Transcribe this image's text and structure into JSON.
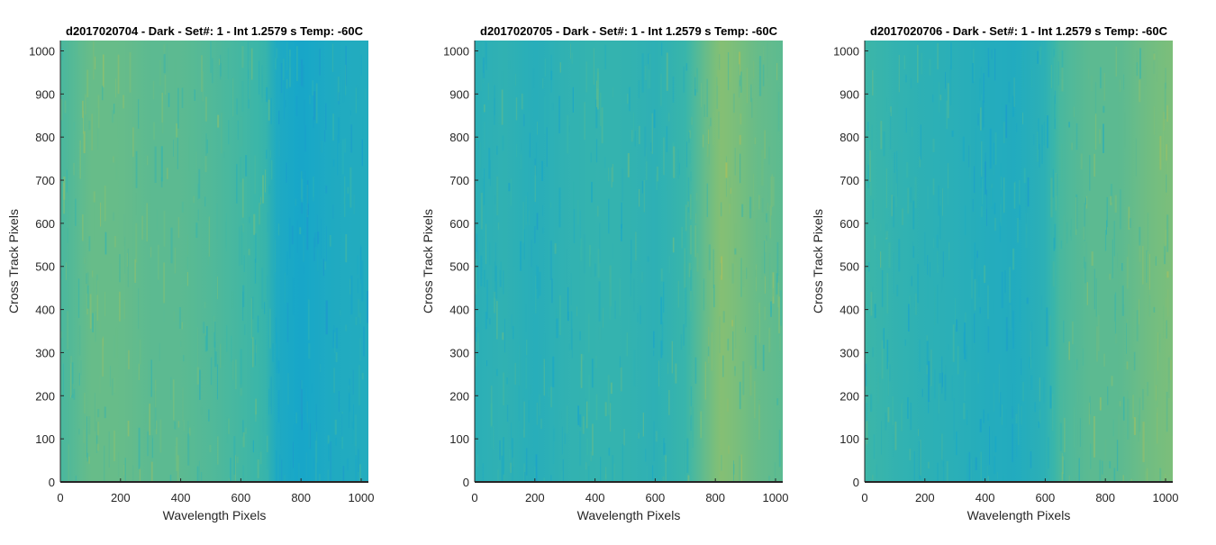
{
  "figure": {
    "background": "#ffffff"
  },
  "chart_data": [
    {
      "type": "heatmap",
      "title": "d2017020704 - Dark - Set#: 1 - Int 1.2579 s Temp: -60C",
      "xlabel": "Wavelength Pixels",
      "ylabel": "Cross Track Pixels",
      "xlim": [
        0,
        1024
      ],
      "ylim": [
        0,
        1024
      ],
      "xticks": [
        0,
        200,
        400,
        600,
        800,
        1000
      ],
      "yticks": [
        0,
        100,
        200,
        300,
        400,
        500,
        600,
        700,
        800,
        900,
        1000
      ],
      "colormap": [
        "#1f8fd0",
        "#18a7c8",
        "#3cb6a8",
        "#7fbf78",
        "#b6bf55"
      ],
      "column_profile": {
        "x": [
          0,
          100,
          200,
          300,
          400,
          500,
          600,
          680,
          720,
          800,
          900,
          1024
        ],
        "level": [
          0.55,
          0.66,
          0.66,
          0.62,
          0.62,
          0.58,
          0.53,
          0.48,
          0.3,
          0.24,
          0.3,
          0.33
        ]
      }
    },
    {
      "type": "heatmap",
      "title": "d2017020705 - Dark - Set#: 1 - Int 1.2579 s Temp: -60C",
      "xlabel": "Wavelength Pixels",
      "ylabel": "Cross Track Pixels",
      "xlim": [
        0,
        1024
      ],
      "ylim": [
        0,
        1024
      ],
      "xticks": [
        0,
        200,
        400,
        600,
        800,
        1000
      ],
      "yticks": [
        0,
        100,
        200,
        300,
        400,
        500,
        600,
        700,
        800,
        900,
        1000
      ],
      "colormap": [
        "#1f8fd0",
        "#18a7c8",
        "#3cb6a8",
        "#7fbf78",
        "#b6bf55"
      ],
      "column_profile": {
        "x": [
          0,
          100,
          200,
          300,
          400,
          500,
          600,
          700,
          760,
          820,
          880,
          940,
          1024
        ],
        "level": [
          0.38,
          0.42,
          0.36,
          0.42,
          0.45,
          0.44,
          0.4,
          0.48,
          0.64,
          0.78,
          0.72,
          0.66,
          0.62
        ]
      }
    },
    {
      "type": "heatmap",
      "title": "d2017020706 - Dark - Set#: 1 - Int 1.2579 s Temp: -60C",
      "xlabel": "Wavelength Pixels",
      "ylabel": "Cross Track Pixels",
      "xlim": [
        0,
        1024
      ],
      "ylim": [
        0,
        1024
      ],
      "xticks": [
        0,
        200,
        400,
        600,
        800,
        1000
      ],
      "yticks": [
        0,
        100,
        200,
        300,
        400,
        500,
        600,
        700,
        800,
        900,
        1000
      ],
      "colormap": [
        "#1f8fd0",
        "#18a7c8",
        "#3cb6a8",
        "#7fbf78",
        "#b6bf55"
      ],
      "column_profile": {
        "x": [
          0,
          100,
          200,
          300,
          400,
          500,
          600,
          650,
          750,
          850,
          950,
          1024
        ],
        "level": [
          0.5,
          0.44,
          0.4,
          0.38,
          0.34,
          0.32,
          0.4,
          0.55,
          0.62,
          0.62,
          0.7,
          0.74
        ]
      }
    }
  ]
}
